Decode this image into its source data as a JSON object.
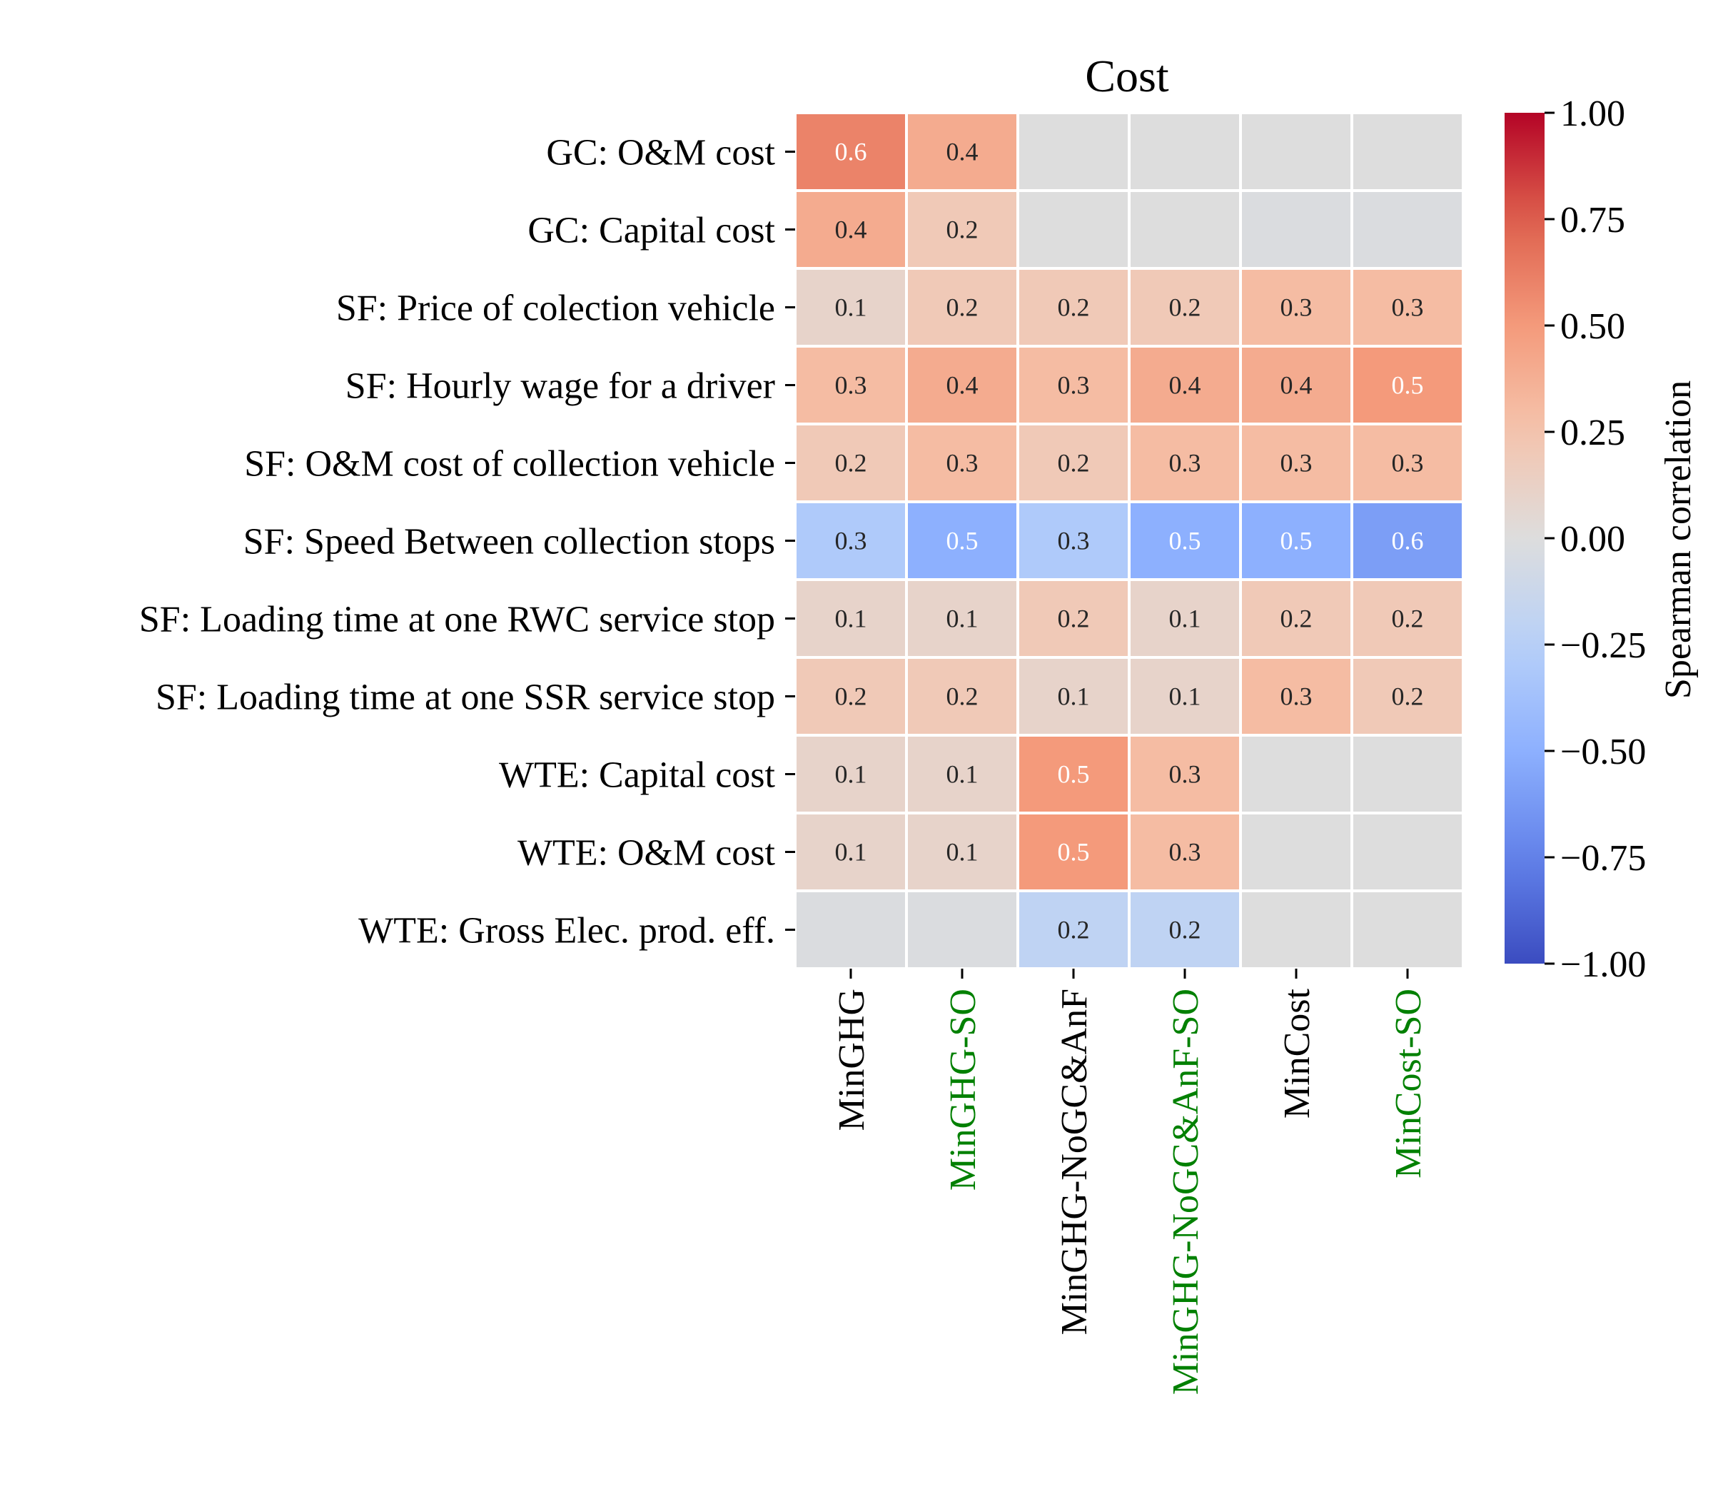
{
  "chart_data": {
    "type": "heatmap",
    "title": "Cost",
    "rows": [
      "GC: O&M cost",
      "GC: Capital cost",
      "SF: Price of colection vehicle",
      "SF: Hourly wage for a driver",
      "SF: O&M cost of collection vehicle",
      "SF: Speed Between collection stops",
      "SF: Loading time at one RWC service stop",
      "SF: Loading time at one SSR service stop",
      "WTE: Capital cost",
      "WTE: O&M cost",
      "WTE: Gross Elec. prod. eff."
    ],
    "columns": [
      {
        "label": "MinGHG",
        "color": "#000000"
      },
      {
        "label": "MinGHG-SO",
        "color": "#008000"
      },
      {
        "label": "MinGHG-NoGC&AnF",
        "color": "#000000"
      },
      {
        "label": "MinGHG-NoGC&AnF-SO",
        "color": "#008000"
      },
      {
        "label": "MinCost",
        "color": "#000000"
      },
      {
        "label": "MinCost-SO",
        "color": "#008000"
      }
    ],
    "values": [
      [
        0.6,
        0.4,
        0.0,
        0.0,
        0.0,
        0.0
      ],
      [
        0.4,
        0.2,
        0.0,
        0.0,
        -0.02,
        -0.02
      ],
      [
        0.1,
        0.2,
        0.2,
        0.2,
        0.3,
        0.3
      ],
      [
        0.3,
        0.4,
        0.3,
        0.4,
        0.4,
        0.5
      ],
      [
        0.2,
        0.3,
        0.2,
        0.3,
        0.3,
        0.3
      ],
      [
        -0.3,
        -0.5,
        -0.3,
        -0.5,
        -0.5,
        -0.6
      ],
      [
        0.1,
        0.1,
        0.2,
        0.1,
        0.2,
        0.2
      ],
      [
        0.2,
        0.2,
        0.1,
        0.1,
        0.3,
        0.2
      ],
      [
        0.1,
        0.1,
        0.5,
        0.3,
        0.0,
        0.0
      ],
      [
        0.1,
        0.1,
        0.5,
        0.3,
        0.0,
        0.0
      ],
      [
        -0.02,
        -0.02,
        -0.2,
        -0.2,
        0.0,
        0.0
      ]
    ],
    "annotations": [
      [
        "0.6",
        "0.4",
        "",
        "",
        "",
        ""
      ],
      [
        "0.4",
        "0.2",
        "",
        "",
        "",
        ""
      ],
      [
        "0.1",
        "0.2",
        "0.2",
        "0.2",
        "0.3",
        "0.3"
      ],
      [
        "0.3",
        "0.4",
        "0.3",
        "0.4",
        "0.4",
        "0.5"
      ],
      [
        "0.2",
        "0.3",
        "0.2",
        "0.3",
        "0.3",
        "0.3"
      ],
      [
        "0.3",
        "0.5",
        "0.3",
        "0.5",
        "0.5",
        "0.6"
      ],
      [
        "0.1",
        "0.1",
        "0.2",
        "0.1",
        "0.2",
        "0.2"
      ],
      [
        "0.2",
        "0.2",
        "0.1",
        "0.1",
        "0.3",
        "0.2"
      ],
      [
        "0.1",
        "0.1",
        "0.5",
        "0.3",
        "",
        ""
      ],
      [
        "0.1",
        "0.1",
        "0.5",
        "0.3",
        "",
        ""
      ],
      [
        "",
        "",
        "0.2",
        "0.2",
        "",
        ""
      ]
    ],
    "colorbar": {
      "label": "Spearman correlation",
      "range": [
        -1,
        1
      ],
      "ticks": [
        "1.00",
        "0.75",
        "0.50",
        "0.25",
        "0.00",
        "−0.25",
        "−0.50",
        "−0.75",
        "−1.00"
      ],
      "colormap": "coolwarm"
    }
  }
}
